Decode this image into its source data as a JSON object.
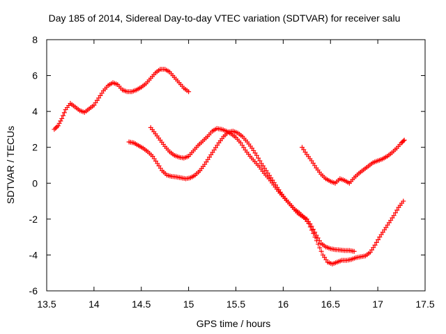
{
  "chart_data": {
    "type": "scatter",
    "title": "Day 185 of 2014, Sidereal Day-to-day VTEC variation (SDTVAR) for receiver salu",
    "xlabel": "GPS time / hours",
    "ylabel": "SDTVAR / TECUs",
    "xlim": [
      13.5,
      17.5
    ],
    "ylim": [
      -6,
      8
    ],
    "x_ticks": [
      "13.5",
      "14",
      "14.5",
      "15",
      "15.5",
      "16",
      "16.5",
      "17",
      "17.5"
    ],
    "y_ticks": [
      "-6",
      "-4",
      "-2",
      "0",
      "2",
      "4",
      "6",
      "8"
    ],
    "grid": false,
    "legend": "none",
    "marker": "plus",
    "series": [
      {
        "color": "#ff0000",
        "points": [
          [
            13.58,
            3.0
          ],
          [
            13.62,
            3.2
          ],
          [
            13.66,
            3.6
          ],
          [
            13.7,
            4.1
          ],
          [
            13.75,
            4.45
          ],
          [
            13.8,
            4.25
          ],
          [
            13.85,
            4.05
          ],
          [
            13.9,
            3.95
          ],
          [
            13.95,
            4.15
          ],
          [
            14.0,
            4.35
          ],
          [
            14.05,
            4.75
          ],
          [
            14.1,
            5.15
          ],
          [
            14.15,
            5.45
          ],
          [
            14.2,
            5.6
          ],
          [
            14.25,
            5.5
          ],
          [
            14.3,
            5.2
          ],
          [
            14.35,
            5.1
          ],
          [
            14.4,
            5.1
          ],
          [
            14.45,
            5.2
          ],
          [
            14.5,
            5.35
          ],
          [
            14.55,
            5.55
          ],
          [
            14.6,
            5.85
          ],
          [
            14.65,
            6.15
          ],
          [
            14.7,
            6.35
          ],
          [
            14.75,
            6.35
          ],
          [
            14.8,
            6.2
          ],
          [
            14.85,
            5.9
          ],
          [
            14.9,
            5.6
          ],
          [
            14.95,
            5.3
          ],
          [
            15.0,
            5.1
          ]
        ]
      },
      {
        "color": "#ff0000",
        "points": [
          [
            14.6,
            3.1
          ],
          [
            14.65,
            2.75
          ],
          [
            14.7,
            2.4
          ],
          [
            14.75,
            2.05
          ],
          [
            14.8,
            1.75
          ],
          [
            14.85,
            1.55
          ],
          [
            14.9,
            1.45
          ],
          [
            14.95,
            1.4
          ],
          [
            15.0,
            1.5
          ],
          [
            15.05,
            1.8
          ],
          [
            15.1,
            2.1
          ],
          [
            15.15,
            2.35
          ],
          [
            15.2,
            2.6
          ],
          [
            15.25,
            2.9
          ],
          [
            15.3,
            3.05
          ],
          [
            15.35,
            3.0
          ],
          [
            15.4,
            2.9
          ],
          [
            15.45,
            2.75
          ],
          [
            15.5,
            2.55
          ],
          [
            15.55,
            2.25
          ],
          [
            15.6,
            1.85
          ],
          [
            15.65,
            1.5
          ],
          [
            15.7,
            1.2
          ],
          [
            15.75,
            0.9
          ],
          [
            15.8,
            0.55
          ],
          [
            15.85,
            0.25
          ],
          [
            15.9,
            -0.1
          ],
          [
            15.95,
            -0.45
          ],
          [
            16.0,
            -0.75
          ],
          [
            16.05,
            -1.05
          ],
          [
            16.1,
            -1.35
          ],
          [
            16.15,
            -1.65
          ],
          [
            16.2,
            -1.85
          ],
          [
            16.25,
            -2.0
          ],
          [
            16.3,
            -2.4
          ],
          [
            16.35,
            -2.9
          ],
          [
            16.4,
            -3.35
          ],
          [
            16.45,
            -3.55
          ],
          [
            16.5,
            -3.65
          ],
          [
            16.55,
            -3.7
          ],
          [
            16.6,
            -3.72
          ],
          [
            16.65,
            -3.75
          ],
          [
            16.7,
            -3.75
          ],
          [
            16.75,
            -3.8
          ]
        ]
      },
      {
        "color": "#ff0000",
        "points": [
          [
            14.37,
            2.3
          ],
          [
            14.42,
            2.25
          ],
          [
            14.47,
            2.1
          ],
          [
            14.52,
            1.95
          ],
          [
            14.57,
            1.75
          ],
          [
            14.62,
            1.5
          ],
          [
            14.67,
            1.1
          ],
          [
            14.72,
            0.7
          ],
          [
            14.77,
            0.45
          ],
          [
            14.82,
            0.38
          ],
          [
            14.87,
            0.35
          ],
          [
            14.92,
            0.3
          ],
          [
            14.97,
            0.25
          ],
          [
            15.02,
            0.3
          ],
          [
            15.07,
            0.45
          ],
          [
            15.12,
            0.7
          ],
          [
            15.17,
            1.05
          ],
          [
            15.22,
            1.45
          ],
          [
            15.27,
            1.85
          ],
          [
            15.32,
            2.25
          ],
          [
            15.37,
            2.6
          ],
          [
            15.42,
            2.85
          ],
          [
            15.47,
            2.9
          ],
          [
            15.52,
            2.8
          ],
          [
            15.57,
            2.6
          ],
          [
            15.62,
            2.3
          ],
          [
            15.67,
            1.95
          ],
          [
            15.72,
            1.55
          ],
          [
            15.77,
            1.1
          ],
          [
            15.82,
            0.7
          ],
          [
            15.87,
            0.3
          ],
          [
            15.92,
            -0.1
          ],
          [
            15.97,
            -0.5
          ],
          [
            16.02,
            -0.85
          ],
          [
            16.07,
            -1.15
          ],
          [
            16.12,
            -1.45
          ],
          [
            16.17,
            -1.65
          ],
          [
            16.22,
            -1.9
          ],
          [
            16.27,
            -2.25
          ],
          [
            16.32,
            -2.8
          ],
          [
            16.37,
            -3.4
          ],
          [
            16.42,
            -4.0
          ],
          [
            16.47,
            -4.4
          ],
          [
            16.52,
            -4.5
          ],
          [
            16.57,
            -4.4
          ],
          [
            16.62,
            -4.3
          ],
          [
            16.67,
            -4.3
          ],
          [
            16.72,
            -4.25
          ],
          [
            16.77,
            -4.15
          ],
          [
            16.82,
            -4.1
          ],
          [
            16.87,
            -4.05
          ],
          [
            16.92,
            -3.85
          ],
          [
            16.97,
            -3.45
          ],
          [
            17.02,
            -3.0
          ],
          [
            17.07,
            -2.6
          ],
          [
            17.12,
            -2.2
          ],
          [
            17.17,
            -1.8
          ],
          [
            17.22,
            -1.35
          ],
          [
            17.27,
            -1.0
          ]
        ]
      },
      {
        "color": "#ff0000",
        "points": [
          [
            16.2,
            2.0
          ],
          [
            16.25,
            1.6
          ],
          [
            16.3,
            1.25
          ],
          [
            16.35,
            0.85
          ],
          [
            16.4,
            0.5
          ],
          [
            16.45,
            0.25
          ],
          [
            16.5,
            0.1
          ],
          [
            16.55,
            0.0
          ],
          [
            16.6,
            0.25
          ],
          [
            16.65,
            0.15
          ],
          [
            16.7,
            0.0
          ],
          [
            16.75,
            0.3
          ],
          [
            16.8,
            0.55
          ],
          [
            16.85,
            0.75
          ],
          [
            16.9,
            0.95
          ],
          [
            16.95,
            1.15
          ],
          [
            17.0,
            1.25
          ],
          [
            17.05,
            1.35
          ],
          [
            17.1,
            1.5
          ],
          [
            17.15,
            1.7
          ],
          [
            17.2,
            1.95
          ],
          [
            17.25,
            2.25
          ],
          [
            17.28,
            2.4
          ]
        ]
      }
    ]
  }
}
